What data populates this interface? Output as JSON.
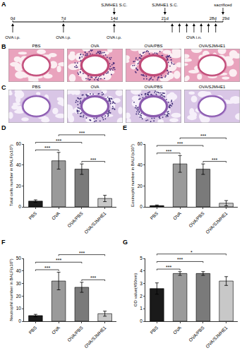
{
  "timeline": {
    "panel": "A",
    "xlim": [
      0,
      29
    ],
    "ticks": [
      {
        "value": 0,
        "label": "0d"
      },
      {
        "value": 7,
        "label": "7d"
      },
      {
        "value": 14,
        "label": "14d"
      },
      {
        "value": 21,
        "label": "21d"
      },
      {
        "value": 28,
        "label": "28d"
      },
      {
        "value": 29,
        "label": "29d"
      }
    ],
    "above": [
      {
        "days": [
          14
        ],
        "label": "SJMHE1 S.C."
      },
      {
        "days": [
          21
        ],
        "label": "SJMHE1 S.C."
      },
      {
        "days": [
          29
        ],
        "label": "sacrificed"
      }
    ],
    "below": [
      {
        "days": [
          0
        ],
        "label": "OVA i.p."
      },
      {
        "days": [
          7
        ],
        "label": "OVA i.p."
      },
      {
        "days": [
          14
        ],
        "label": "OVA i.p."
      },
      {
        "days": [
          22,
          23,
          24,
          25,
          26,
          27,
          28
        ],
        "label": "OVA i.n."
      }
    ]
  },
  "histology": {
    "groups": [
      {
        "name": "PBS",
        "inflamed": false
      },
      {
        "name": "OVA",
        "inflamed": true
      },
      {
        "name": "OVA/PBS",
        "inflamed": true
      },
      {
        "name": "OVA/SJMHE1",
        "inflamed": false
      }
    ],
    "rows": [
      {
        "panel": "B"
      },
      {
        "panel": "C"
      }
    ]
  },
  "chart_data": [
    {
      "type": "bar",
      "panel": "D",
      "y_label": "Total cells number in BALF(x10⁵)",
      "categories": [
        "PBS",
        "OVA",
        "OVA/PBS",
        "OVA/SJMHE1"
      ],
      "values": [
        5.5,
        44,
        36,
        8
      ],
      "errors": [
        1.2,
        8,
        5,
        3
      ],
      "colors": [
        "#1a1a1a",
        "#9a9a9a",
        "#7a7a7a",
        "#c8c8c8"
      ],
      "ylim": [
        0,
        60
      ],
      "yticks": [
        0,
        20,
        40,
        60
      ],
      "grid": false,
      "comparisons": [
        {
          "from": "PBS",
          "to": "OVA",
          "label": "***"
        },
        {
          "from": "OVA/PBS",
          "to": "OVA/SJMHE1",
          "label": "***"
        },
        {
          "from": "PBS",
          "to": "OVA/PBS",
          "label": "***"
        },
        {
          "from": "OVA",
          "to": "OVA/SJMHE1",
          "label": "***"
        }
      ]
    },
    {
      "type": "bar",
      "panel": "E",
      "y_label": "Eosinophil number in BALF(x10⁵)",
      "categories": [
        "PBS",
        "OVA",
        "OVA/PBS",
        "OVA/SJMHE1"
      ],
      "values": [
        1.2,
        41,
        36,
        3.5
      ],
      "errors": [
        0.6,
        8,
        5,
        2.5
      ],
      "colors": [
        "#1a1a1a",
        "#9a9a9a",
        "#7a7a7a",
        "#c8c8c8"
      ],
      "ylim": [
        0,
        60
      ],
      "yticks": [
        0,
        20,
        40,
        60
      ],
      "grid": false,
      "comparisons": [
        {
          "from": "PBS",
          "to": "OVA",
          "label": "***"
        },
        {
          "from": "OVA/PBS",
          "to": "OVA/SJMHE1",
          "label": "***"
        },
        {
          "from": "PBS",
          "to": "OVA/PBS",
          "label": "***"
        },
        {
          "from": "OVA",
          "to": "OVA/SJMHE1",
          "label": "***"
        }
      ]
    },
    {
      "type": "bar",
      "panel": "F",
      "y_label": "Neutrophil number in BALF(x10⁵)",
      "categories": [
        "PBS",
        "OVA",
        "OVA/PBS",
        "OVA/SJMHE1"
      ],
      "values": [
        4.5,
        32,
        27,
        6
      ],
      "errors": [
        1,
        7,
        4,
        2
      ],
      "colors": [
        "#1a1a1a",
        "#9a9a9a",
        "#7a7a7a",
        "#c8c8c8"
      ],
      "ylim": [
        0,
        50
      ],
      "yticks": [
        0,
        10,
        20,
        30,
        40,
        50
      ],
      "grid": false,
      "comparisons": [
        {
          "from": "PBS",
          "to": "OVA",
          "label": "***"
        },
        {
          "from": "OVA/PBS",
          "to": "OVA/SJMHE1",
          "label": "***"
        },
        {
          "from": "PBS",
          "to": "OVA/PBS",
          "label": "***"
        },
        {
          "from": "OVA",
          "to": "OVA/SJMHE1",
          "label": "***"
        }
      ]
    },
    {
      "type": "bar",
      "panel": "G",
      "y_label": "OD value(450nm)",
      "categories": [
        "PBS",
        "OVA",
        "OVA/PBS",
        "OVA/SJMHE1"
      ],
      "values": [
        2.6,
        3.8,
        3.8,
        3.2
      ],
      "errors": [
        0.45,
        0.15,
        0.15,
        0.35
      ],
      "colors": [
        "#1a1a1a",
        "#9a9a9a",
        "#7a7a7a",
        "#c8c8c8"
      ],
      "ylim": [
        0,
        5
      ],
      "yticks": [
        0,
        1,
        2,
        3,
        4,
        5
      ],
      "grid": false,
      "comparisons": [
        {
          "from": "PBS",
          "to": "OVA",
          "label": "***"
        },
        {
          "from": "PBS",
          "to": "OVA/PBS",
          "label": "***"
        },
        {
          "from": "PBS",
          "to": "OVA/SJMHE1",
          "label": "*"
        }
      ]
    }
  ]
}
